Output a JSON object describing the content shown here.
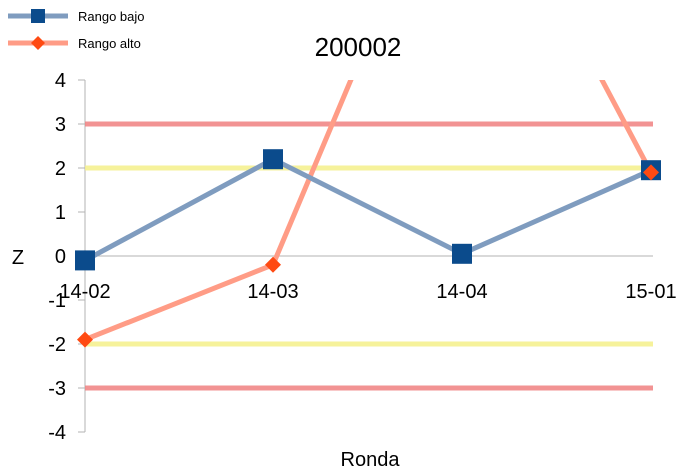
{
  "chart_data": {
    "type": "line",
    "title": "200002",
    "xlabel": "Ronda",
    "ylabel": "Z",
    "categories": [
      "14-02",
      "14-03",
      "14-04",
      "15-01"
    ],
    "ylim": [
      -4,
      4
    ],
    "yticks": [
      4,
      3,
      2,
      1,
      0,
      -1,
      -2,
      -3,
      -4
    ],
    "legend_position": "top-left",
    "grid": false,
    "series": [
      {
        "name": "Rango bajo",
        "values": [
          -0.1,
          2.2,
          0.05,
          1.95
        ],
        "color": "#7f9cbf",
        "marker": "square",
        "marker_color": "#0b4b8c"
      },
      {
        "name": "Rango alto",
        "values": [
          -1.9,
          -0.2,
          10,
          1.9
        ],
        "color": "#ff9c86",
        "marker": "diamond",
        "marker_color": "#ff4a12"
      }
    ],
    "reference_lines": [
      {
        "y": 3,
        "color": "#f08080"
      },
      {
        "y": -3,
        "color": "#f08080"
      },
      {
        "y": 2,
        "color": "#f5f08a"
      },
      {
        "y": -2,
        "color": "#f5f08a"
      }
    ]
  }
}
